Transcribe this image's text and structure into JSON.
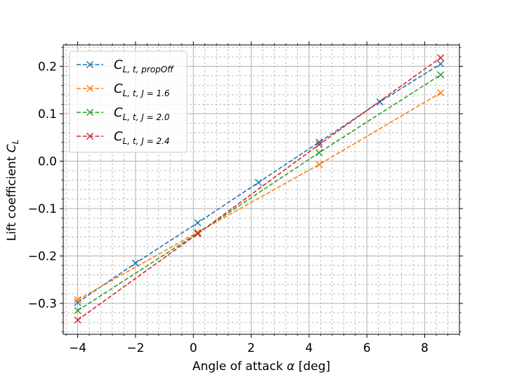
{
  "chart_data": {
    "type": "line",
    "xlabel_text": "Angle of attack ",
    "xlabel_symbol": "α",
    "xlabel_unit": " [deg]",
    "ylabel_text": "Lift coefficient ",
    "ylabel_symbol": "C",
    "ylabel_sub": "L",
    "xlim": [
      -4.5,
      9.2
    ],
    "ylim": [
      -0.365,
      0.245
    ],
    "x_ticks": [
      -4,
      -2,
      0,
      2,
      4,
      6,
      8
    ],
    "x_tick_labels": [
      "−4",
      "−2",
      "0",
      "2",
      "4",
      "6",
      "8"
    ],
    "y_ticks": [
      -0.3,
      -0.2,
      -0.1,
      0.0,
      0.1,
      0.2
    ],
    "y_tick_labels": [
      "−0.3",
      "−0.2",
      "−0.1",
      "0.0",
      "0.1",
      "0.2"
    ],
    "grid": true,
    "minor_grid": true,
    "legend_position": "top-left",
    "series": [
      {
        "name": "C_{L,t,propOff}",
        "legend_main": "C",
        "legend_sub": "L, t, propOff",
        "color": "#1f77b4",
        "x": [
          -4.0,
          -2.0,
          0.15,
          2.25,
          4.35,
          6.45,
          8.55
        ],
        "y": [
          -0.298,
          -0.215,
          -0.13,
          -0.045,
          0.04,
          0.125,
          0.205
        ]
      },
      {
        "name": "C_{L,t,J=1.6}",
        "legend_main": "C",
        "legend_sub": "L, t, J = 1.6",
        "color": "#ff7f0e",
        "x": [
          -4.0,
          0.15,
          4.35,
          8.55
        ],
        "y": [
          -0.292,
          -0.15,
          -0.007,
          0.144
        ]
      },
      {
        "name": "C_{L,t,J=2.0}",
        "legend_main": "C",
        "legend_sub": "L, t, J = 2.0",
        "color": "#2ca02c",
        "x": [
          -4.0,
          0.15,
          4.35,
          8.55
        ],
        "y": [
          -0.315,
          -0.152,
          0.018,
          0.182
        ]
      },
      {
        "name": "C_{L,t,J=2.4}",
        "legend_main": "C",
        "legend_sub": "L, t, J = 2.4",
        "color": "#d62728",
        "x": [
          -4.0,
          0.15,
          4.35,
          8.55
        ],
        "y": [
          -0.335,
          -0.153,
          0.035,
          0.218
        ]
      }
    ]
  }
}
